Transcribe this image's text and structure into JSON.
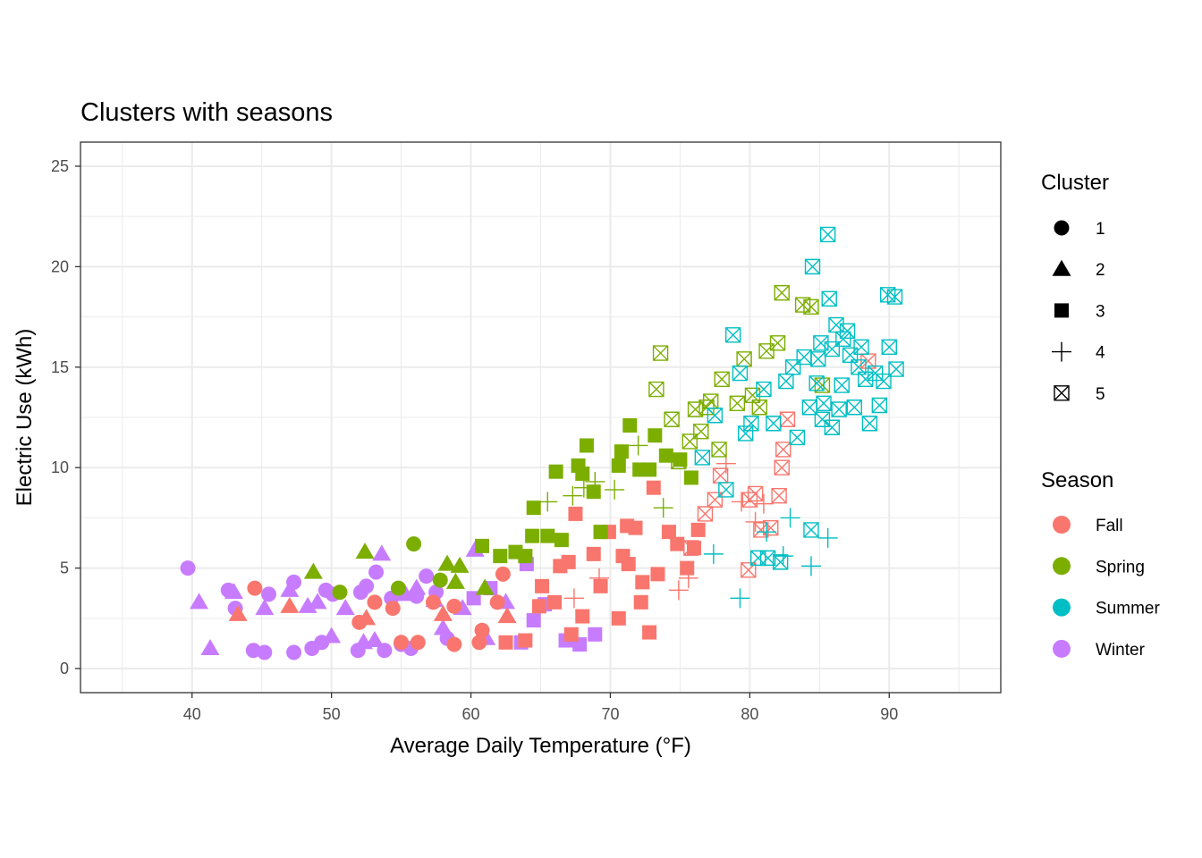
{
  "chart_data": {
    "type": "scatter",
    "title": "Clusters with seasons",
    "xlabel": "Average Daily Temperature (°F)",
    "ylabel": "Electric Use (kWh)",
    "xlim": [
      32,
      98
    ],
    "ylim": [
      -1.2,
      26.2
    ],
    "xticks": [
      40,
      50,
      60,
      70,
      80,
      90
    ],
    "yticks": [
      0,
      5,
      10,
      15,
      20,
      25
    ],
    "grid": true,
    "legend_position": "right",
    "color_legend": {
      "title": "Season",
      "entries": [
        {
          "label": "Fall",
          "color": "#F8766D"
        },
        {
          "label": "Spring",
          "color": "#7CAE00"
        },
        {
          "label": "Summer",
          "color": "#00BFC4"
        },
        {
          "label": "Winter",
          "color": "#C77CFF"
        }
      ]
    },
    "shape_legend": {
      "title": "Cluster",
      "entries": [
        {
          "label": "1",
          "shape": "circle"
        },
        {
          "label": "2",
          "shape": "triangle"
        },
        {
          "label": "3",
          "shape": "square"
        },
        {
          "label": "4",
          "shape": "plus"
        },
        {
          "label": "5",
          "shape": "square-cross"
        }
      ]
    },
    "series": [
      {
        "season": "Winter",
        "cluster": "1",
        "points": [
          [
            39.7,
            5.0
          ],
          [
            42.6,
            3.9
          ],
          [
            43.1,
            3.0
          ],
          [
            44.4,
            0.9
          ],
          [
            45.2,
            0.8
          ],
          [
            45.5,
            3.7
          ],
          [
            47.3,
            0.8
          ],
          [
            47.3,
            4.3
          ],
          [
            48.6,
            1.0
          ],
          [
            49.3,
            1.3
          ],
          [
            49.6,
            3.9
          ],
          [
            50.1,
            3.7
          ],
          [
            51.9,
            0.9
          ],
          [
            52.1,
            3.8
          ],
          [
            52.5,
            4.1
          ],
          [
            53.2,
            4.8
          ],
          [
            53.8,
            0.9
          ],
          [
            54.3,
            3.5
          ],
          [
            55.0,
            1.2
          ],
          [
            55.7,
            1.0
          ],
          [
            56.1,
            3.6
          ],
          [
            56.8,
            4.6
          ],
          [
            57.5,
            3.8
          ],
          [
            58.3,
            1.5
          ]
        ]
      },
      {
        "season": "Winter",
        "cluster": "2",
        "points": [
          [
            40.5,
            3.3
          ],
          [
            41.3,
            1.0
          ],
          [
            43.0,
            3.8
          ],
          [
            45.2,
            3.0
          ],
          [
            47.0,
            3.9
          ],
          [
            48.3,
            3.1
          ],
          [
            49.0,
            3.3
          ],
          [
            50.0,
            1.6
          ],
          [
            51.0,
            3.0
          ],
          [
            52.3,
            1.3
          ],
          [
            53.1,
            1.4
          ],
          [
            53.6,
            5.7
          ],
          [
            55.3,
            3.7
          ],
          [
            56.1,
            4.0
          ],
          [
            57.4,
            3.4
          ],
          [
            58.0,
            2.0
          ],
          [
            59.4,
            3.0
          ],
          [
            60.3,
            5.9
          ],
          [
            61.1,
            1.5
          ],
          [
            62.5,
            3.3
          ]
        ]
      },
      {
        "season": "Winter",
        "cluster": "3",
        "points": [
          [
            60.2,
            3.5
          ],
          [
            61.4,
            4.0
          ],
          [
            63.6,
            1.3
          ],
          [
            64.5,
            2.4
          ],
          [
            65.3,
            3.2
          ],
          [
            66.8,
            1.4
          ],
          [
            67.8,
            1.2
          ],
          [
            68.9,
            1.7
          ],
          [
            64.0,
            5.2
          ]
        ]
      },
      {
        "season": "Fall",
        "cluster": "1",
        "points": [
          [
            44.5,
            4.0
          ],
          [
            52.0,
            2.3
          ],
          [
            53.1,
            3.3
          ],
          [
            54.4,
            3.0
          ],
          [
            55.0,
            1.3
          ],
          [
            56.2,
            1.3
          ],
          [
            57.3,
            3.3
          ],
          [
            58.8,
            3.1
          ],
          [
            58.8,
            1.2
          ],
          [
            60.6,
            1.3
          ],
          [
            60.8,
            1.9
          ],
          [
            61.9,
            3.3
          ],
          [
            62.3,
            4.7
          ]
        ]
      },
      {
        "season": "Fall",
        "cluster": "2",
        "points": [
          [
            43.3,
            2.7
          ],
          [
            47.0,
            3.1
          ],
          [
            52.5,
            2.5
          ],
          [
            58.0,
            2.7
          ],
          [
            62.6,
            2.6
          ]
        ]
      },
      {
        "season": "Fall",
        "cluster": "3",
        "points": [
          [
            62.5,
            1.3
          ],
          [
            63.9,
            1.4
          ],
          [
            65.1,
            4.1
          ],
          [
            66.4,
            5.1
          ],
          [
            67.2,
            1.7
          ],
          [
            67.5,
            7.7
          ],
          [
            68.0,
            2.6
          ],
          [
            68.8,
            5.7
          ],
          [
            69.3,
            4.1
          ],
          [
            69.9,
            6.8
          ],
          [
            70.6,
            2.5
          ],
          [
            70.9,
            5.6
          ],
          [
            71.3,
            5.2
          ],
          [
            71.8,
            7.0
          ],
          [
            72.2,
            3.3
          ],
          [
            72.3,
            4.3
          ],
          [
            72.8,
            1.8
          ],
          [
            73.1,
            9.0
          ],
          [
            73.4,
            4.7
          ],
          [
            74.2,
            6.8
          ],
          [
            74.8,
            6.2
          ],
          [
            75.5,
            5.0
          ],
          [
            76.0,
            6.0
          ],
          [
            76.3,
            6.9
          ],
          [
            71.2,
            7.1
          ],
          [
            66.0,
            3.3
          ],
          [
            67.0,
            5.3
          ],
          [
            64.9,
            3.1
          ]
        ]
      },
      {
        "season": "Fall",
        "cluster": "4",
        "points": [
          [
            67.4,
            3.5
          ],
          [
            69.2,
            4.5
          ],
          [
            74.9,
            3.9
          ],
          [
            75.6,
            4.5
          ],
          [
            78.3,
            10.2
          ],
          [
            79.4,
            8.3
          ],
          [
            80.4,
            7.3
          ],
          [
            81.0,
            8.2
          ]
        ]
      },
      {
        "season": "Fall",
        "cluster": "5",
        "points": [
          [
            75.8,
            6.0
          ],
          [
            76.8,
            7.7
          ],
          [
            77.5,
            8.4
          ],
          [
            77.9,
            9.6
          ],
          [
            80.0,
            8.4
          ],
          [
            80.4,
            8.7
          ],
          [
            80.8,
            6.9
          ],
          [
            81.5,
            7.0
          ],
          [
            82.1,
            8.6
          ],
          [
            82.4,
            10.9
          ],
          [
            82.7,
            12.4
          ],
          [
            79.9,
            4.9
          ],
          [
            88.5,
            15.3
          ],
          [
            82.3,
            10.0
          ]
        ]
      },
      {
        "season": "Spring",
        "cluster": "1",
        "points": [
          [
            50.6,
            3.8
          ],
          [
            54.8,
            4.0
          ],
          [
            55.9,
            6.2
          ],
          [
            57.8,
            4.4
          ]
        ]
      },
      {
        "season": "Spring",
        "cluster": "2",
        "points": [
          [
            48.7,
            4.8
          ],
          [
            52.4,
            5.8
          ],
          [
            58.3,
            5.2
          ],
          [
            58.9,
            4.3
          ],
          [
            59.2,
            5.1
          ],
          [
            61.0,
            4.0
          ]
        ]
      },
      {
        "season": "Spring",
        "cluster": "3",
        "points": [
          [
            60.8,
            6.1
          ],
          [
            62.1,
            5.6
          ],
          [
            63.2,
            5.8
          ],
          [
            63.9,
            5.6
          ],
          [
            64.4,
            6.6
          ],
          [
            64.5,
            8.0
          ],
          [
            65.5,
            6.6
          ],
          [
            66.1,
            9.8
          ],
          [
            66.5,
            6.4
          ],
          [
            67.7,
            10.1
          ],
          [
            68.0,
            9.7
          ],
          [
            68.3,
            11.1
          ],
          [
            68.8,
            8.8
          ],
          [
            69.3,
            6.8
          ],
          [
            70.6,
            10.1
          ],
          [
            70.8,
            10.8
          ],
          [
            71.4,
            12.1
          ],
          [
            72.1,
            9.9
          ],
          [
            72.8,
            9.9
          ],
          [
            73.2,
            11.6
          ],
          [
            74.0,
            10.6
          ],
          [
            75.0,
            10.4
          ],
          [
            75.8,
            9.5
          ]
        ]
      },
      {
        "season": "Spring",
        "cluster": "4",
        "points": [
          [
            65.5,
            8.3
          ],
          [
            67.3,
            8.6
          ],
          [
            68.1,
            9.0
          ],
          [
            68.9,
            9.3
          ],
          [
            70.3,
            8.9
          ],
          [
            72.0,
            11.1
          ],
          [
            73.8,
            8.0
          ]
        ]
      },
      {
        "season": "Spring",
        "cluster": "5",
        "points": [
          [
            73.3,
            13.9
          ],
          [
            73.6,
            15.7
          ],
          [
            74.4,
            12.4
          ],
          [
            74.9,
            10.3
          ],
          [
            75.7,
            11.3
          ],
          [
            76.1,
            12.9
          ],
          [
            76.5,
            11.8
          ],
          [
            77.2,
            13.3
          ],
          [
            77.8,
            10.9
          ],
          [
            78.0,
            14.4
          ],
          [
            79.1,
            13.2
          ],
          [
            79.6,
            15.4
          ],
          [
            80.2,
            13.6
          ],
          [
            80.7,
            13.0
          ],
          [
            81.2,
            15.8
          ],
          [
            82.0,
            16.2
          ],
          [
            82.3,
            18.7
          ],
          [
            83.8,
            18.1
          ],
          [
            84.4,
            18.0
          ],
          [
            85.2,
            14.1
          ],
          [
            76.9,
            13.0
          ]
        ]
      },
      {
        "season": "Summer",
        "cluster": "4",
        "points": [
          [
            77.4,
            5.7
          ],
          [
            79.3,
            3.5
          ],
          [
            81.2,
            6.8
          ],
          [
            82.4,
            5.6
          ],
          [
            84.4,
            5.1
          ],
          [
            85.6,
            6.5
          ],
          [
            82.9,
            7.5
          ]
        ]
      },
      {
        "season": "Summer",
        "cluster": "5",
        "points": [
          [
            76.6,
            10.5
          ],
          [
            77.5,
            12.6
          ],
          [
            78.3,
            8.9
          ],
          [
            78.8,
            16.6
          ],
          [
            79.3,
            14.7
          ],
          [
            79.7,
            11.7
          ],
          [
            80.1,
            12.2
          ],
          [
            80.6,
            5.5
          ],
          [
            81.0,
            13.9
          ],
          [
            81.3,
            5.5
          ],
          [
            81.7,
            12.2
          ],
          [
            82.2,
            5.3
          ],
          [
            82.6,
            14.3
          ],
          [
            83.1,
            15.0
          ],
          [
            83.4,
            11.5
          ],
          [
            83.9,
            15.5
          ],
          [
            84.3,
            13.0
          ],
          [
            84.5,
            20.0
          ],
          [
            84.8,
            14.2
          ],
          [
            85.1,
            16.2
          ],
          [
            85.3,
            13.2
          ],
          [
            85.6,
            21.6
          ],
          [
            85.7,
            18.4
          ],
          [
            85.9,
            15.9
          ],
          [
            86.2,
            17.1
          ],
          [
            86.4,
            12.9
          ],
          [
            86.7,
            16.4
          ],
          [
            87.0,
            16.8
          ],
          [
            87.2,
            15.6
          ],
          [
            87.5,
            13.0
          ],
          [
            88.0,
            16.0
          ],
          [
            88.3,
            14.4
          ],
          [
            88.6,
            12.2
          ],
          [
            89.0,
            14.7
          ],
          [
            89.3,
            13.1
          ],
          [
            89.6,
            14.3
          ],
          [
            89.9,
            18.6
          ],
          [
            90.0,
            16.0
          ],
          [
            90.4,
            18.5
          ],
          [
            90.5,
            14.9
          ],
          [
            84.4,
            6.9
          ],
          [
            85.9,
            12.0
          ],
          [
            86.6,
            14.1
          ],
          [
            87.8,
            15.0
          ],
          [
            85.2,
            12.4
          ],
          [
            84.9,
            15.4
          ]
        ]
      }
    ]
  }
}
